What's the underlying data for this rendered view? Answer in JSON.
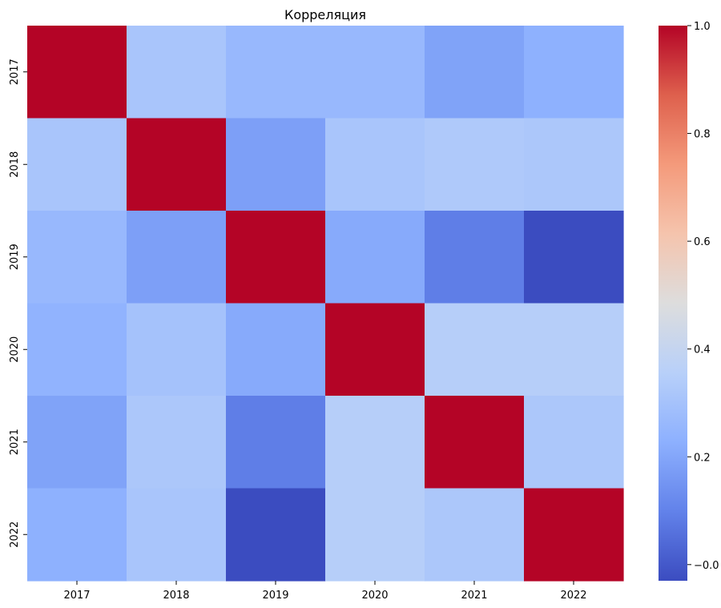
{
  "chart_data": {
    "type": "heatmap",
    "title": "Корреляция",
    "xlabel": "",
    "ylabel": "",
    "x_categories": [
      "2017",
      "2018",
      "2019",
      "2020",
      "2021",
      "2022"
    ],
    "y_categories": [
      "2017",
      "2018",
      "2019",
      "2020",
      "2021",
      "2022"
    ],
    "values": [
      [
        1.0,
        0.31,
        0.26,
        0.26,
        0.19,
        0.23
      ],
      [
        0.31,
        1.0,
        0.18,
        0.31,
        0.33,
        0.32
      ],
      [
        0.26,
        0.18,
        1.0,
        0.21,
        0.09,
        -0.03
      ],
      [
        0.24,
        0.3,
        0.21,
        1.0,
        0.35,
        0.35
      ],
      [
        0.19,
        0.32,
        0.09,
        0.35,
        1.0,
        0.32
      ],
      [
        0.23,
        0.31,
        -0.03,
        0.35,
        0.32,
        1.0
      ]
    ],
    "colormap": "coolwarm",
    "vmin": -0.03,
    "vmax": 1.0,
    "colorbar_ticks": [
      0.0,
      0.2,
      0.4,
      0.6,
      0.8,
      1.0
    ],
    "colorbar_tick_labels": [
      "−0.0",
      "0.2",
      "0.4",
      "0.6",
      "0.8",
      "1.0"
    ],
    "grid": false,
    "legend": "colorbar-right"
  }
}
